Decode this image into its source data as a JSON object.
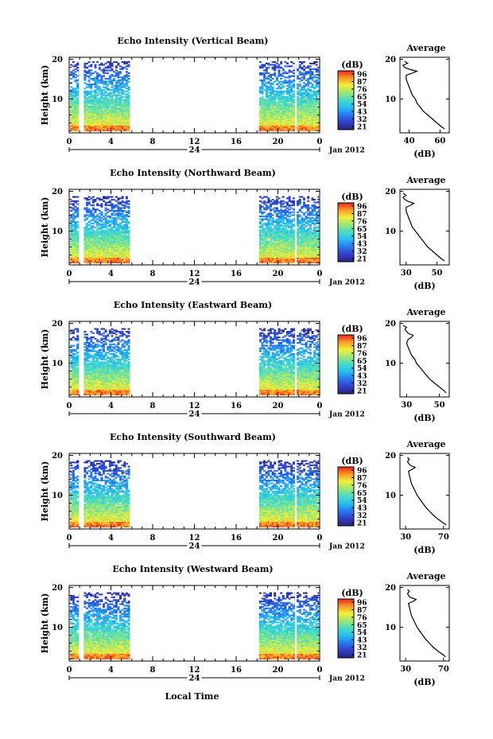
{
  "figure": {
    "xlabel": "Local Time",
    "date_label": "Jan 2012",
    "ylabel": "Height (km)",
    "colorbar_unit": "(dB)",
    "avg_title": "Average",
    "avg_xlabel": "(dB)"
  },
  "chart_data": [
    {
      "type": "heatmap",
      "title": "Echo Intensity (Vertical Beam)",
      "xlabel": "Local Time",
      "ylabel": "Height (km)",
      "x_ticks": [
        "0",
        "4",
        "8",
        "12",
        "16",
        "20",
        "0"
      ],
      "x_sub_label": "24",
      "y_ticks": [
        "20",
        "10"
      ],
      "ylim": [
        1.5,
        20.5
      ],
      "xlim": [
        0,
        24
      ],
      "data_intervals_hours": [
        [
          0.1,
          0.9
        ],
        [
          1.4,
          5.8
        ],
        [
          18.2,
          21.6
        ],
        [
          21.8,
          23.9
        ]
      ],
      "colorbar": {
        "unit": "(dB)",
        "ticks": [
          "96",
          "87",
          "76",
          "65",
          "54",
          "43",
          "32",
          "21"
        ],
        "range": [
          21,
          96
        ]
      },
      "average_profile": {
        "title": "Average",
        "xlabel": "(dB)",
        "x_ticks": [
          "40",
          "60"
        ],
        "xlim": [
          34,
          66
        ],
        "y_ticks": [
          "20",
          "10"
        ],
        "height_km": [
          2.5,
          3,
          4,
          5,
          6,
          7,
          8,
          9,
          10,
          11,
          12,
          13,
          14,
          15,
          16,
          16.5,
          17,
          17.5,
          18,
          18.5,
          19,
          19.5
        ],
        "db": [
          63,
          61,
          58,
          55,
          52,
          49,
          47,
          45,
          44,
          42,
          41,
          40,
          39,
          38,
          38,
          42,
          45,
          40,
          37,
          36,
          39,
          37
        ]
      }
    },
    {
      "type": "heatmap",
      "title": "Echo Intensity (Northward Beam)",
      "xlabel": "Local Time",
      "ylabel": "Height (km)",
      "x_ticks": [
        "0",
        "4",
        "8",
        "12",
        "16",
        "20",
        "0"
      ],
      "x_sub_label": "24",
      "y_ticks": [
        "20",
        "10"
      ],
      "ylim": [
        1.5,
        20.5
      ],
      "xlim": [
        0,
        24
      ],
      "data_intervals_hours": [
        [
          0.1,
          0.9
        ],
        [
          1.4,
          5.8
        ],
        [
          18.2,
          21.6
        ],
        [
          21.8,
          23.9
        ]
      ],
      "colorbar": {
        "unit": "(dB)",
        "ticks": [
          "96",
          "87",
          "76",
          "65",
          "54",
          "43",
          "32",
          "21"
        ],
        "range": [
          21,
          96
        ]
      },
      "average_profile": {
        "title": "Average",
        "xlabel": "(dB)",
        "x_ticks": [
          "30",
          "50"
        ],
        "xlim": [
          26,
          58
        ],
        "y_ticks": [
          "20",
          "10"
        ],
        "height_km": [
          2.5,
          3,
          4,
          5,
          6,
          7,
          8,
          9,
          10,
          11,
          12,
          13,
          14,
          15,
          16,
          16.5,
          17,
          17.5,
          18,
          18.5,
          19,
          19.5
        ],
        "db": [
          55,
          53,
          50,
          47,
          44,
          42,
          40,
          38,
          36,
          34,
          33,
          32,
          31,
          30,
          30,
          33,
          35,
          31,
          29,
          28,
          30,
          28
        ]
      }
    },
    {
      "type": "heatmap",
      "title": "Echo Intensity (Eastward Beam)",
      "xlabel": "Local Time",
      "ylabel": "Height (km)",
      "x_ticks": [
        "0",
        "4",
        "8",
        "12",
        "16",
        "20",
        "0"
      ],
      "x_sub_label": "24",
      "y_ticks": [
        "20",
        "10"
      ],
      "ylim": [
        1.5,
        20.5
      ],
      "xlim": [
        0,
        24
      ],
      "data_intervals_hours": [
        [
          0.1,
          0.9
        ],
        [
          1.4,
          5.8
        ],
        [
          18.2,
          21.6
        ],
        [
          21.8,
          23.9
        ]
      ],
      "colorbar": {
        "unit": "(dB)",
        "ticks": [
          "96",
          "87",
          "76",
          "65",
          "54",
          "43",
          "32",
          "21"
        ],
        "range": [
          21,
          96
        ]
      },
      "average_profile": {
        "title": "Average",
        "xlabel": "(dB)",
        "x_ticks": [
          "30",
          "50"
        ],
        "xlim": [
          26,
          56
        ],
        "y_ticks": [
          "20",
          "10"
        ],
        "height_km": [
          2.5,
          3,
          4,
          5,
          6,
          7,
          8,
          9,
          10,
          11,
          12,
          13,
          14,
          15,
          16,
          16.5,
          17,
          17.5,
          18,
          18.5,
          19,
          19.5
        ],
        "db": [
          54,
          53,
          50,
          47,
          44,
          42,
          40,
          38,
          36,
          35,
          33,
          32,
          31,
          30,
          31,
          33,
          34,
          31,
          30,
          29,
          30,
          28
        ]
      }
    },
    {
      "type": "heatmap",
      "title": "Echo Intensity (Southward Beam)",
      "xlabel": "Local Time",
      "ylabel": "Height (km)",
      "x_ticks": [
        "0",
        "4",
        "8",
        "12",
        "16",
        "20",
        "0"
      ],
      "x_sub_label": "24",
      "y_ticks": [
        "20",
        "10"
      ],
      "ylim": [
        1.5,
        20.5
      ],
      "xlim": [
        0,
        24
      ],
      "data_intervals_hours": [
        [
          0.1,
          0.9
        ],
        [
          1.4,
          5.8
        ],
        [
          18.2,
          21.6
        ],
        [
          21.8,
          23.9
        ]
      ],
      "colorbar": {
        "unit": "(dB)",
        "ticks": [
          "96",
          "87",
          "76",
          "65",
          "54",
          "43",
          "32",
          "21"
        ],
        "range": [
          21,
          96
        ]
      },
      "average_profile": {
        "title": "Average",
        "xlabel": "(dB)",
        "x_ticks": [
          "30",
          "70"
        ],
        "xlim": [
          24,
          76
        ],
        "y_ticks": [
          "20",
          "10"
        ],
        "height_km": [
          2.5,
          3,
          4,
          5,
          6,
          7,
          8,
          9,
          10,
          11,
          12,
          13,
          14,
          15,
          16,
          16.5,
          17,
          17.5,
          18,
          18.5,
          19,
          19.5
        ],
        "db": [
          73,
          70,
          64,
          59,
          55,
          51,
          48,
          45,
          42,
          40,
          38,
          36,
          35,
          34,
          33,
          37,
          40,
          35,
          33,
          32,
          34,
          32
        ]
      }
    },
    {
      "type": "heatmap",
      "title": "Echo Intensity (Westward Beam)",
      "xlabel": "Local Time",
      "ylabel": "Height (km)",
      "x_ticks": [
        "0",
        "4",
        "8",
        "12",
        "16",
        "20",
        "0"
      ],
      "x_sub_label": "24",
      "y_ticks": [
        "20",
        "10"
      ],
      "ylim": [
        1.5,
        20.5
      ],
      "xlim": [
        0,
        24
      ],
      "data_intervals_hours": [
        [
          0.1,
          0.9
        ],
        [
          1.4,
          5.8
        ],
        [
          18.2,
          21.6
        ],
        [
          21.8,
          23.9
        ]
      ],
      "colorbar": {
        "unit": "(dB)",
        "ticks": [
          "96",
          "87",
          "76",
          "65",
          "54",
          "43",
          "32",
          "21"
        ],
        "range": [
          21,
          96
        ]
      },
      "average_profile": {
        "title": "Average",
        "xlabel": "(dB)",
        "x_ticks": [
          "30",
          "70"
        ],
        "xlim": [
          24,
          76
        ],
        "y_ticks": [
          "20",
          "10"
        ],
        "height_km": [
          2.5,
          3,
          4,
          5,
          6,
          7,
          8,
          9,
          10,
          11,
          12,
          13,
          14,
          15,
          16,
          16.5,
          17,
          17.5,
          18,
          18.5,
          19,
          19.5
        ],
        "db": [
          72,
          70,
          64,
          59,
          55,
          51,
          48,
          45,
          42,
          40,
          38,
          36,
          35,
          34,
          33,
          38,
          41,
          35,
          33,
          32,
          34,
          32
        ]
      }
    }
  ]
}
